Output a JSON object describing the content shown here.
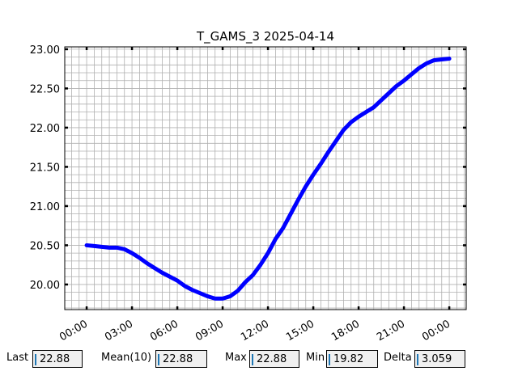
{
  "chart_data": {
    "type": "line",
    "title": "T_GAMS_3 2025-04-14",
    "x": [
      0,
      0.5,
      1,
      1.5,
      2,
      2.5,
      3,
      3.5,
      4,
      4.5,
      5,
      5.5,
      6,
      6.5,
      7,
      7.5,
      8,
      8.5,
      9,
      9.5,
      10,
      10.5,
      11,
      11.5,
      12,
      12.5,
      13,
      13.5,
      14,
      14.5,
      15,
      15.5,
      16,
      16.5,
      17,
      17.5,
      18,
      18.5,
      19,
      19.5,
      20,
      20.5,
      21,
      21.5,
      22,
      22.5,
      23,
      23.5,
      24
    ],
    "series": [
      {
        "color": "#0000ff",
        "values": [
          20.5,
          20.49,
          20.48,
          20.47,
          20.47,
          20.45,
          20.4,
          20.34,
          20.27,
          20.21,
          20.15,
          20.1,
          20.05,
          19.98,
          19.93,
          19.89,
          19.85,
          19.82,
          19.82,
          19.85,
          19.92,
          20.03,
          20.12,
          20.25,
          20.4,
          20.58,
          20.72,
          20.9,
          21.08,
          21.25,
          21.4,
          21.54,
          21.69,
          21.83,
          21.97,
          22.07,
          22.14,
          22.2,
          22.26,
          22.35,
          22.44,
          22.53,
          22.6,
          22.68,
          22.76,
          22.82,
          22.86,
          22.87,
          22.88
        ]
      }
    ],
    "xlim": [
      -1.45,
      25.12
    ],
    "xticks": [
      {
        "value": 0,
        "label": "00:00"
      },
      {
        "value": 3,
        "label": "03:00"
      },
      {
        "value": 6,
        "label": "06:00"
      },
      {
        "value": 9,
        "label": "09:00"
      },
      {
        "value": 12,
        "label": "12:00"
      },
      {
        "value": 15,
        "label": "15:00"
      },
      {
        "value": 18,
        "label": "18:00"
      },
      {
        "value": 21,
        "label": "21:00"
      },
      {
        "value": 24,
        "label": "00:00"
      }
    ],
    "ylim": [
      19.68,
      23.03
    ],
    "yticks": [
      {
        "value": 20,
        "label": "20.00"
      },
      {
        "value": 20.5,
        "label": "20.50"
      },
      {
        "value": 21,
        "label": "21.00"
      },
      {
        "value": 21.5,
        "label": "21.50"
      },
      {
        "value": 22,
        "label": "22.00"
      },
      {
        "value": 22.5,
        "label": "22.50"
      },
      {
        "value": 23,
        "label": "23.00"
      }
    ],
    "grid": true
  },
  "stats": [
    {
      "label": "Last",
      "value": 22.88
    },
    {
      "label": "Mean(10)",
      "value": 22.88
    },
    {
      "label": "Max",
      "value": 22.88
    },
    {
      "label": "Min",
      "value": 19.82
    },
    {
      "label": "Delta",
      "value": 3.059
    }
  ]
}
